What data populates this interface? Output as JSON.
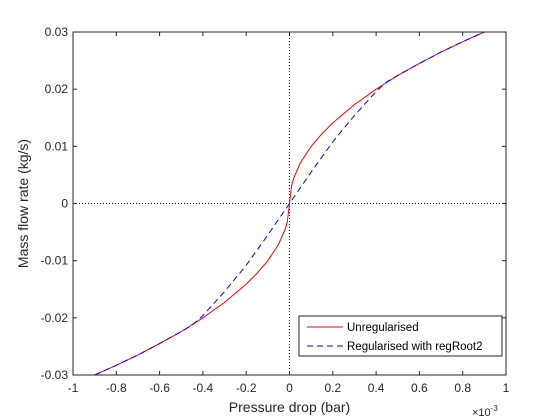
{
  "chart_data": {
    "type": "line",
    "xlabel": "Pressure drop (bar)",
    "ylabel": "Mass flow rate (kg/s)",
    "x_multiplier": "×10",
    "x_multiplier_exp": "-3",
    "xlim": [
      -1,
      1
    ],
    "ylim": [
      -0.03,
      0.03
    ],
    "xticks": [
      -1,
      -0.8,
      -0.6,
      -0.4,
      -0.2,
      0,
      0.2,
      0.4,
      0.6,
      0.8,
      1
    ],
    "xtick_labels": [
      "-1",
      "-0.8",
      "-0.6",
      "-0.4",
      "-0.2",
      "0",
      "0.2",
      "0.4",
      "0.6",
      "0.8",
      "1"
    ],
    "yticks": [
      -0.03,
      -0.02,
      -0.01,
      0,
      0.01,
      0.02,
      0.03
    ],
    "ytick_labels": [
      "-0.03",
      "-0.02",
      "-0.01",
      "0",
      "0.01",
      "0.02",
      "0.03"
    ],
    "grid": false,
    "legend_position": "bottom-right",
    "reference_lines": [
      {
        "orientation": "vertical",
        "value": 0,
        "style": "dotted"
      },
      {
        "orientation": "horizontal",
        "value": 0,
        "style": "dotted"
      }
    ],
    "series": [
      {
        "name": "Unregularised",
        "color": "#ff0000",
        "style": "solid",
        "x": [
          -0.9,
          -0.8,
          -0.7,
          -0.6,
          -0.5,
          -0.45,
          -0.4,
          -0.3,
          -0.2,
          -0.15,
          -0.1,
          -0.05,
          -0.02,
          -0.01,
          0,
          0.01,
          0.02,
          0.05,
          0.1,
          0.15,
          0.2,
          0.3,
          0.4,
          0.45,
          0.5,
          0.6,
          0.7,
          0.8,
          0.9
        ],
        "y": [
          -0.03,
          -0.0283,
          -0.0265,
          -0.0245,
          -0.0224,
          -0.0212,
          -0.02,
          -0.0173,
          -0.0141,
          -0.0122,
          -0.01,
          -0.0071,
          -0.0045,
          -0.0032,
          0,
          0.0032,
          0.0045,
          0.0071,
          0.01,
          0.0122,
          0.0141,
          0.0173,
          0.02,
          0.0212,
          0.0224,
          0.0245,
          0.0265,
          0.0283,
          0.03
        ]
      },
      {
        "name": "Regularised with regRoot2",
        "color": "#0000ff",
        "style": "dashed",
        "x": [
          -0.9,
          -0.8,
          -0.7,
          -0.6,
          -0.5,
          -0.45,
          -0.4,
          -0.3,
          -0.2,
          -0.1,
          0,
          0.1,
          0.2,
          0.3,
          0.4,
          0.45,
          0.5,
          0.6,
          0.7,
          0.8,
          0.9
        ],
        "y": [
          -0.03,
          -0.0283,
          -0.0265,
          -0.0245,
          -0.0224,
          -0.0213,
          -0.0196,
          -0.0154,
          -0.0108,
          -0.0055,
          0,
          0.0055,
          0.0108,
          0.0154,
          0.0196,
          0.0213,
          0.0224,
          0.0245,
          0.0265,
          0.0283,
          0.03
        ]
      }
    ]
  }
}
